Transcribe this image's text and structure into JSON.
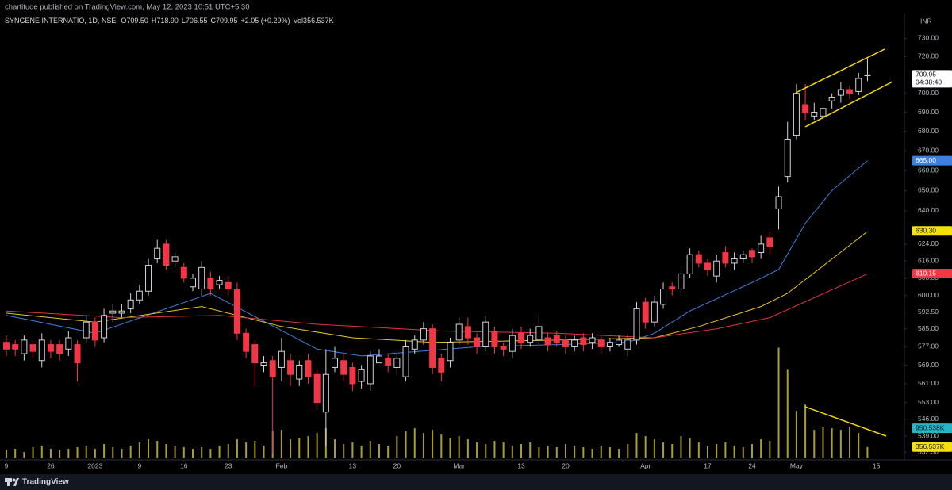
{
  "header": "chartitude published on TradingView.com, May 12, 2023 10:51 UTC+5:30",
  "footer": "TradingView",
  "chart_data": {
    "type": "candlestick",
    "symbol": "SYNGENE INTERNATIO, 1D, NSE",
    "ohlc_legend": [
      "O709.50",
      "H718.90",
      "L706.55",
      "C709.95",
      "+2.05 (+0.29%)",
      "Vol356.537K"
    ],
    "currency": "INR",
    "categories": [
      "9",
      null,
      null,
      null,
      null,
      "26",
      null,
      null,
      null,
      null,
      "2023",
      null,
      null,
      null,
      null,
      "9",
      null,
      null,
      null,
      null,
      "16",
      null,
      null,
      null,
      null,
      "23",
      null,
      null,
      null,
      null,
      null,
      "Feb",
      null,
      null,
      null,
      null,
      null,
      null,
      null,
      "13",
      null,
      null,
      null,
      null,
      "20",
      null,
      null,
      null,
      null,
      null,
      null,
      "Mar",
      null,
      null,
      null,
      null,
      null,
      null,
      "13",
      null,
      null,
      null,
      null,
      "20",
      null,
      null,
      null,
      null,
      null,
      null,
      null,
      null,
      "Apr",
      null,
      null,
      null,
      null,
      null,
      null,
      "17",
      null,
      null,
      null,
      null,
      "24",
      null,
      null,
      null,
      null,
      "May",
      null,
      null,
      null,
      null,
      null,
      null,
      null,
      null,
      "15"
    ],
    "open": [
      579,
      578,
      574,
      578,
      571,
      578,
      578,
      576,
      578,
      581,
      588,
      581,
      592,
      592,
      594,
      598,
      602,
      617,
      624,
      616,
      613,
      604,
      603,
      608,
      605,
      606,
      603,
      583,
      578,
      569,
      571,
      568,
      571,
      563,
      571,
      565,
      549,
      568,
      571,
      568,
      562,
      561,
      570,
      572,
      568,
      564,
      576,
      580,
      585,
      572,
      571,
      580,
      586,
      581,
      577,
      584,
      577,
      575,
      583,
      579,
      580,
      581,
      582,
      580,
      577,
      581,
      579,
      580,
      577,
      578,
      576,
      580,
      597,
      588,
      596,
      604,
      603,
      610,
      619,
      615,
      609,
      620,
      615,
      617,
      621,
      620,
      627,
      641,
      657,
      678,
      694,
      688,
      688,
      696,
      699,
      702,
      701,
      709.5,
      null
    ],
    "high": [
      582,
      580,
      582,
      580,
      583,
      580,
      580,
      584,
      580,
      591,
      590,
      594,
      596,
      596,
      601,
      605,
      617,
      626,
      626,
      620,
      615,
      610,
      616,
      611,
      609,
      609,
      606,
      585,
      580,
      573,
      573,
      581,
      574,
      571,
      574,
      567,
      576,
      577,
      574,
      570,
      569,
      575,
      576,
      574,
      574,
      580,
      582,
      588,
      587,
      574,
      581,
      590,
      590,
      583,
      591,
      586,
      579,
      585,
      586,
      585,
      591,
      583,
      584,
      582,
      582,
      583,
      583,
      582,
      581,
      582,
      582,
      597,
      599,
      600,
      606,
      606,
      612,
      622,
      621,
      617,
      619,
      623,
      620,
      621,
      622,
      628,
      630,
      652,
      685,
      705,
      705,
      695,
      697,
      700,
      706,
      704,
      711,
      718.9,
      null
    ],
    "low": [
      573,
      573,
      571,
      572,
      568,
      572,
      571,
      573,
      562,
      579,
      577,
      579,
      588,
      590,
      592,
      596,
      600,
      615,
      612,
      613,
      606,
      602,
      600,
      600,
      603,
      600,
      580,
      572,
      560,
      566,
      532,
      562,
      560,
      560,
      561,
      550,
      535,
      566,
      562,
      558,
      559,
      558,
      570,
      566,
      565,
      562,
      574,
      578,
      565,
      562,
      568,
      578,
      578,
      574,
      575,
      574,
      573,
      572,
      576,
      577,
      578,
      575,
      577,
      574,
      575,
      575,
      576,
      574,
      575,
      577,
      573,
      578,
      585,
      586,
      594,
      600,
      600,
      608,
      613,
      609,
      606,
      613,
      612,
      615,
      615,
      617,
      619,
      631,
      654,
      676,
      686,
      686,
      686,
      692,
      695,
      697,
      699,
      706.55,
      null
    ],
    "close": [
      576,
      576,
      580,
      575,
      580,
      575,
      574,
      581,
      570,
      588,
      580,
      591,
      593,
      593,
      598,
      602,
      614,
      622,
      614,
      618,
      608,
      608,
      613,
      603,
      607,
      603,
      583,
      575,
      570,
      570,
      564,
      575,
      565,
      569,
      564,
      553,
      565,
      572,
      565,
      561,
      567,
      573,
      573,
      569,
      572,
      577,
      580,
      585,
      568,
      566,
      579,
      587,
      581,
      577,
      588,
      577,
      576,
      582,
      579,
      582,
      586,
      578,
      579,
      577,
      580,
      578,
      581,
      577,
      579,
      580,
      580,
      594,
      588,
      597,
      603,
      603,
      610,
      619,
      615,
      612,
      616,
      615,
      617,
      619,
      618,
      624,
      623,
      647,
      676,
      700,
      690,
      690,
      692,
      698,
      702,
      700,
      708,
      709.95,
      null
    ],
    "up_color": "#d1d4dc",
    "down_color": "#f23645",
    "volume": [
      250,
      300,
      200,
      350,
      400,
      300,
      250,
      300,
      350,
      400,
      300,
      450,
      350,
      300,
      400,
      500,
      600,
      550,
      450,
      400,
      350,
      300,
      350,
      300,
      400,
      450,
      600,
      500,
      550,
      400,
      850,
      900,
      600,
      650,
      700,
      800,
      950,
      600,
      450,
      500,
      400,
      550,
      450,
      400,
      700,
      850,
      950,
      800,
      900,
      750,
      650,
      700,
      600,
      500,
      450,
      550,
      500,
      400,
      450,
      500,
      350,
      400,
      350,
      450,
      400,
      350,
      300,
      400,
      350,
      300,
      450,
      800,
      700,
      600,
      500,
      450,
      700,
      650,
      500,
      400,
      450,
      500,
      400,
      350,
      450,
      600,
      550,
      3500,
      2800,
      1500,
      1700,
      900,
      1000,
      950,
      900,
      1000,
      800,
      356.537,
      null
    ],
    "volume_color": "#a89f2c",
    "volume_lim": [
      0,
      14000
    ],
    "series": [
      {
        "color": "#3d7fe0",
        "x": [
          0,
          10,
          23,
          35,
          40,
          53,
          62,
          70,
          73,
          77,
          84,
          87,
          90,
          93,
          97
        ],
        "values": [
          591,
          583,
          601,
          576,
          573,
          577,
          578,
          579,
          583,
          593,
          606,
          612,
          634,
          650,
          665
        ]
      },
      {
        "color": "#e8c624",
        "x": [
          0,
          10,
          22,
          31,
          39,
          48,
          62,
          73,
          78,
          85,
          88,
          97
        ],
        "values": [
          592,
          588,
          595,
          586,
          581,
          579,
          580,
          581,
          586,
          595,
          601,
          630
        ]
      },
      {
        "color": "#e0343e",
        "x": [
          0,
          13,
          24,
          35,
          49,
          62,
          73,
          80,
          86,
          97
        ],
        "values": [
          593,
          590,
          591,
          587,
          584,
          583,
          581,
          585,
          590,
          610
        ]
      }
    ],
    "ylim": [
      530,
      742.6
    ],
    "log_scale": true,
    "grid": false,
    "yticks": [
      {
        "value": 730,
        "label": "730.00"
      },
      {
        "value": 720,
        "label": "720.00"
      },
      {
        "value": 700,
        "label": "700.00"
      },
      {
        "value": 690,
        "label": "690.00"
      },
      {
        "value": 680,
        "label": "680.00"
      },
      {
        "value": 670,
        "label": "670.00"
      },
      {
        "value": 660,
        "label": "660.00"
      },
      {
        "value": 650,
        "label": "650.00"
      },
      {
        "value": 640,
        "label": "640.00"
      },
      {
        "value": 624,
        "label": "624.00"
      },
      {
        "value": 616,
        "label": "616.00"
      },
      {
        "value": 608,
        "label": "608.00"
      },
      {
        "value": 600,
        "label": "600.00"
      },
      {
        "value": 592.5,
        "label": "592.50"
      },
      {
        "value": 585,
        "label": "585.00"
      },
      {
        "value": 577,
        "label": "577.00"
      },
      {
        "value": 569,
        "label": "569.00"
      },
      {
        "value": 561,
        "label": "561.00"
      },
      {
        "value": 553,
        "label": "553.00"
      },
      {
        "value": 546,
        "label": "546.00"
      },
      {
        "value": 539,
        "label": "539.00"
      },
      {
        "value": 532.5,
        "label": "532.50"
      }
    ],
    "badges": [
      {
        "value": 709.95,
        "label": "709.95",
        "countdown": "04:38:40",
        "axis": "y",
        "color": "#ffffff",
        "text_color": "#131722"
      },
      {
        "value": 665,
        "label": "665.00",
        "axis": "y",
        "color": "#3d7fe0",
        "text_color": "#ffffff"
      },
      {
        "value": 630.3,
        "label": "630.30",
        "axis": "y",
        "color": "#f5e10a",
        "text_color": "#131722"
      },
      {
        "value": 610.15,
        "label": "610.15",
        "axis": "y",
        "color": "#f23645",
        "text_color": "#ffffff"
      },
      {
        "value": 950.538,
        "label": "950.538K",
        "axis": "volume",
        "color": "#26b5c4",
        "text_color": "#131722"
      },
      {
        "value": 356.537,
        "label": "356.537K",
        "axis": "volume",
        "color": "#f5e10a",
        "text_color": "#131722"
      }
    ]
  }
}
